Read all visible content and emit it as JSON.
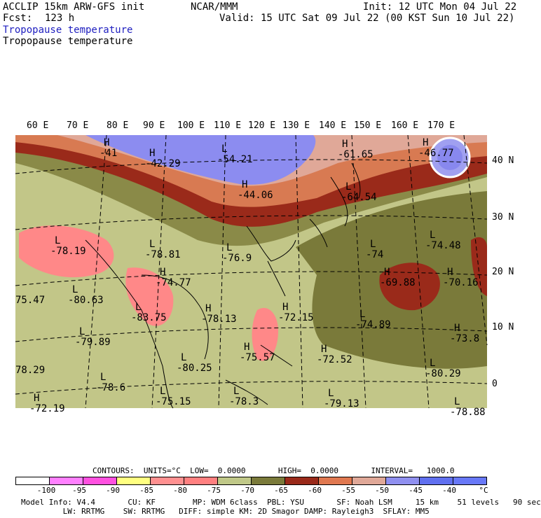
{
  "header": {
    "model": "ACCLIP 15km ARW-GFS init",
    "center": "NCAR/MMM",
    "init": "Init: 12 UTC Mon 04 Jul 22",
    "fcst_label": "Fcst:",
    "fcst_value": "123 h",
    "valid": "Valid: 15 UTC Sat 09 Jul 22 (00 KST Sun 10 Jul 22)",
    "field1": "Tropopause temperature",
    "field2": "Tropopause temperature"
  },
  "map": {
    "lon_labels": [
      "60 E",
      "70 E",
      "80 E",
      "90 E",
      "100 E",
      "110 E",
      "120 E",
      "130 E",
      "140 E",
      "150 E",
      "160 E",
      "170 E"
    ],
    "lat_labels": [
      "40 N",
      "30 N",
      "20 N",
      "10 N",
      "0"
    ],
    "annotations": [
      {
        "mark": "H",
        "value": "-41"
      },
      {
        "mark": "H",
        "value": "-42.29"
      },
      {
        "mark": "L",
        "value": "-54.21"
      },
      {
        "mark": "H",
        "value": "-44.06"
      },
      {
        "mark": "H",
        "value": "-61.65"
      },
      {
        "mark": "H",
        "value": "-46.77"
      },
      {
        "mark": "L",
        "value": "-64.54"
      },
      {
        "mark": "L",
        "value": "-78.19"
      },
      {
        "mark": "L",
        "value": "-78.81"
      },
      {
        "mark": "L",
        "value": "-76.9"
      },
      {
        "mark": "L",
        "value": "-74"
      },
      {
        "mark": "L",
        "value": "-74.48"
      },
      {
        "mark": "H",
        "value": "-74.77"
      },
      {
        "mark": "",
        "value": "75.47"
      },
      {
        "mark": "L",
        "value": "-80.63"
      },
      {
        "mark": "H",
        "value": "-69.88"
      },
      {
        "mark": "H",
        "value": "-70.16"
      },
      {
        "mark": "L",
        "value": "-83.75"
      },
      {
        "mark": "H",
        "value": "-78.13"
      },
      {
        "mark": "H",
        "value": "-72.15"
      },
      {
        "mark": "L",
        "value": "-74.89"
      },
      {
        "mark": "L",
        "value": "-79.89"
      },
      {
        "mark": "H",
        "value": "-73.8"
      },
      {
        "mark": "",
        "value": "78.29"
      },
      {
        "mark": "L",
        "value": "-80.25"
      },
      {
        "mark": "H",
        "value": "-75.57"
      },
      {
        "mark": "H",
        "value": "-72.52"
      },
      {
        "mark": "L",
        "value": "-80.29"
      },
      {
        "mark": "L",
        "value": "-78.6"
      },
      {
        "mark": "L",
        "value": "-75.15"
      },
      {
        "mark": "L",
        "value": "-78.3"
      },
      {
        "mark": "L",
        "value": "-79.13"
      },
      {
        "mark": "H",
        "value": "-72.19"
      },
      {
        "mark": "L",
        "value": "-78.88"
      }
    ]
  },
  "contours_line": "CONTOURS:  UNITS=°C  LOW=  0.0000       HIGH=  0.0000       INTERVAL=   1000.0",
  "colorbar": {
    "colors": [
      "#ffffff",
      "#ff80ff",
      "#ff50e0",
      "#ffff80",
      "#ff9090",
      "#ff8080",
      "#c0c888",
      "#7a7a3a",
      "#9a2a1a",
      "#e07850",
      "#e0a898",
      "#9090f0",
      "#6070f0",
      "#6878f8"
    ],
    "ticks": [
      "-100",
      "-95",
      "-90",
      "-85",
      "-80",
      "-75",
      "-70",
      "-65",
      "-60",
      "-55",
      "-50",
      "-45",
      "-40",
      "°C"
    ]
  },
  "model_info": {
    "line1": "Model Info: V4.4       CU: KF        MP: WDM 6class  PBL: YSU       SF: Noah LSM     15 km    51 levels   90 sec",
    "line2": "         LW: RRTMG    SW: RRTMG   DIFF: simple KM: 2D Smagor DAMP: Rayleigh3  SFLAY: MM5"
  }
}
